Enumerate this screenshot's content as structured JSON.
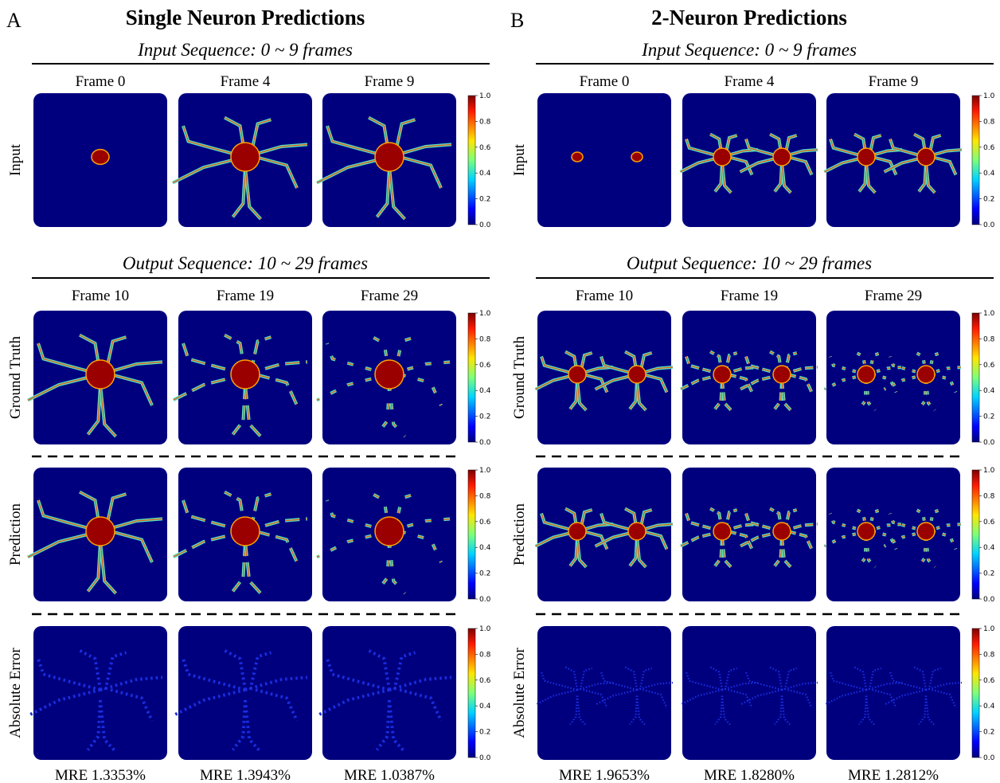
{
  "panels": [
    {
      "letter": "A",
      "title": "Single Neuron Predictions",
      "input_heading": "Input Sequence: 0 ~ 9 frames",
      "input_frames": [
        "Frame 0",
        "Frame 4",
        "Frame 9"
      ],
      "output_heading": "Output Sequence: 10 ~ 29 frames",
      "output_frames": [
        "Frame 10",
        "Frame 19",
        "Frame 29"
      ],
      "rows": [
        "Input",
        "Ground Truth",
        "Prediction",
        "Absolute Error"
      ],
      "mre": [
        "MRE 1.3353%",
        "MRE 1.3943%",
        "MRE 1.0387%"
      ]
    },
    {
      "letter": "B",
      "title": "2-Neuron Predictions",
      "input_heading": "Input Sequence: 0 ~ 9 frames",
      "input_frames": [
        "Frame 0",
        "Frame 4",
        "Frame 9"
      ],
      "output_heading": "Output Sequence: 10 ~ 29 frames",
      "output_frames": [
        "Frame 10",
        "Frame 19",
        "Frame 29"
      ],
      "rows": [
        "Input",
        "Ground Truth",
        "Prediction",
        "Absolute Error"
      ],
      "mre": [
        "MRE 1.9653%",
        "MRE 1.8280%",
        "MRE 1.2812%"
      ]
    }
  ],
  "colorbar": {
    "ticks": [
      "0.0",
      "0.2",
      "0.4",
      "0.6",
      "0.8",
      "1.0"
    ]
  }
}
